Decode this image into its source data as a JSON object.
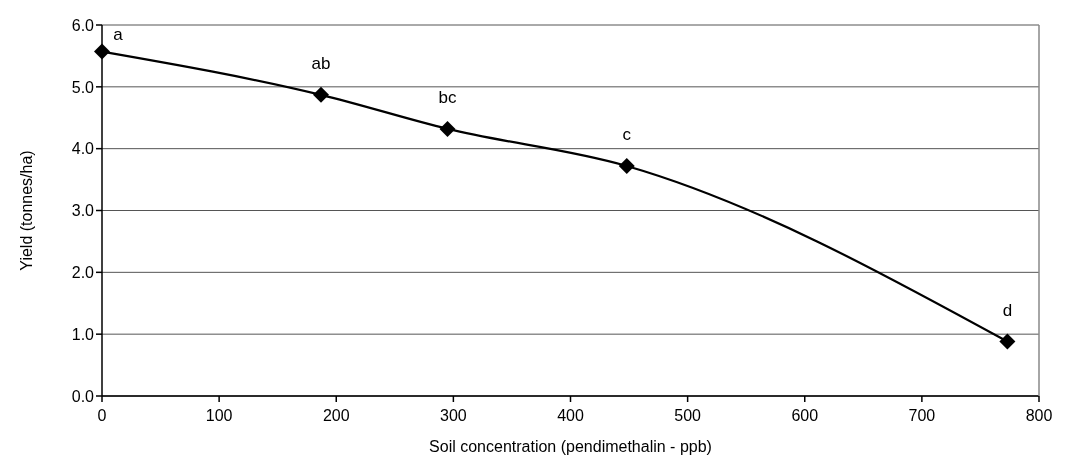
{
  "chart_data": {
    "type": "line",
    "xlabel": "Soil concentration (pendimethalin - ppb)",
    "ylabel": "Yield (tonnes/ha)",
    "x": [
      0,
      187,
      295,
      448,
      773
    ],
    "series": [
      {
        "color": "#000000",
        "values": [
          5.57,
          4.87,
          4.32,
          3.72,
          0.88
        ]
      }
    ],
    "xlim": [
      0,
      800
    ],
    "xticks": [
      0,
      100,
      200,
      300,
      400,
      500,
      600,
      700,
      800
    ],
    "ylim": [
      0,
      6
    ],
    "yticks": [
      {
        "value": 0,
        "label": "0.0"
      },
      {
        "value": 1,
        "label": "1.0"
      },
      {
        "value": 2,
        "label": "2.0"
      },
      {
        "value": 3,
        "label": "3.0"
      },
      {
        "value": 4,
        "label": "4.0"
      },
      {
        "value": 5,
        "label": "5.0"
      },
      {
        "value": 6,
        "label": "6.0"
      }
    ],
    "annotations": [
      {
        "text": "a",
        "x": 0,
        "y": 5.57
      },
      {
        "text": "ab",
        "x": 187,
        "y": 4.87
      },
      {
        "text": "bc",
        "x": 295,
        "y": 4.32
      },
      {
        "text": "c",
        "x": 448,
        "y": 3.72
      },
      {
        "text": "d",
        "x": 773,
        "y": 0.88
      }
    ],
    "grid": "y",
    "marker": "diamond",
    "line_style": "solid"
  }
}
